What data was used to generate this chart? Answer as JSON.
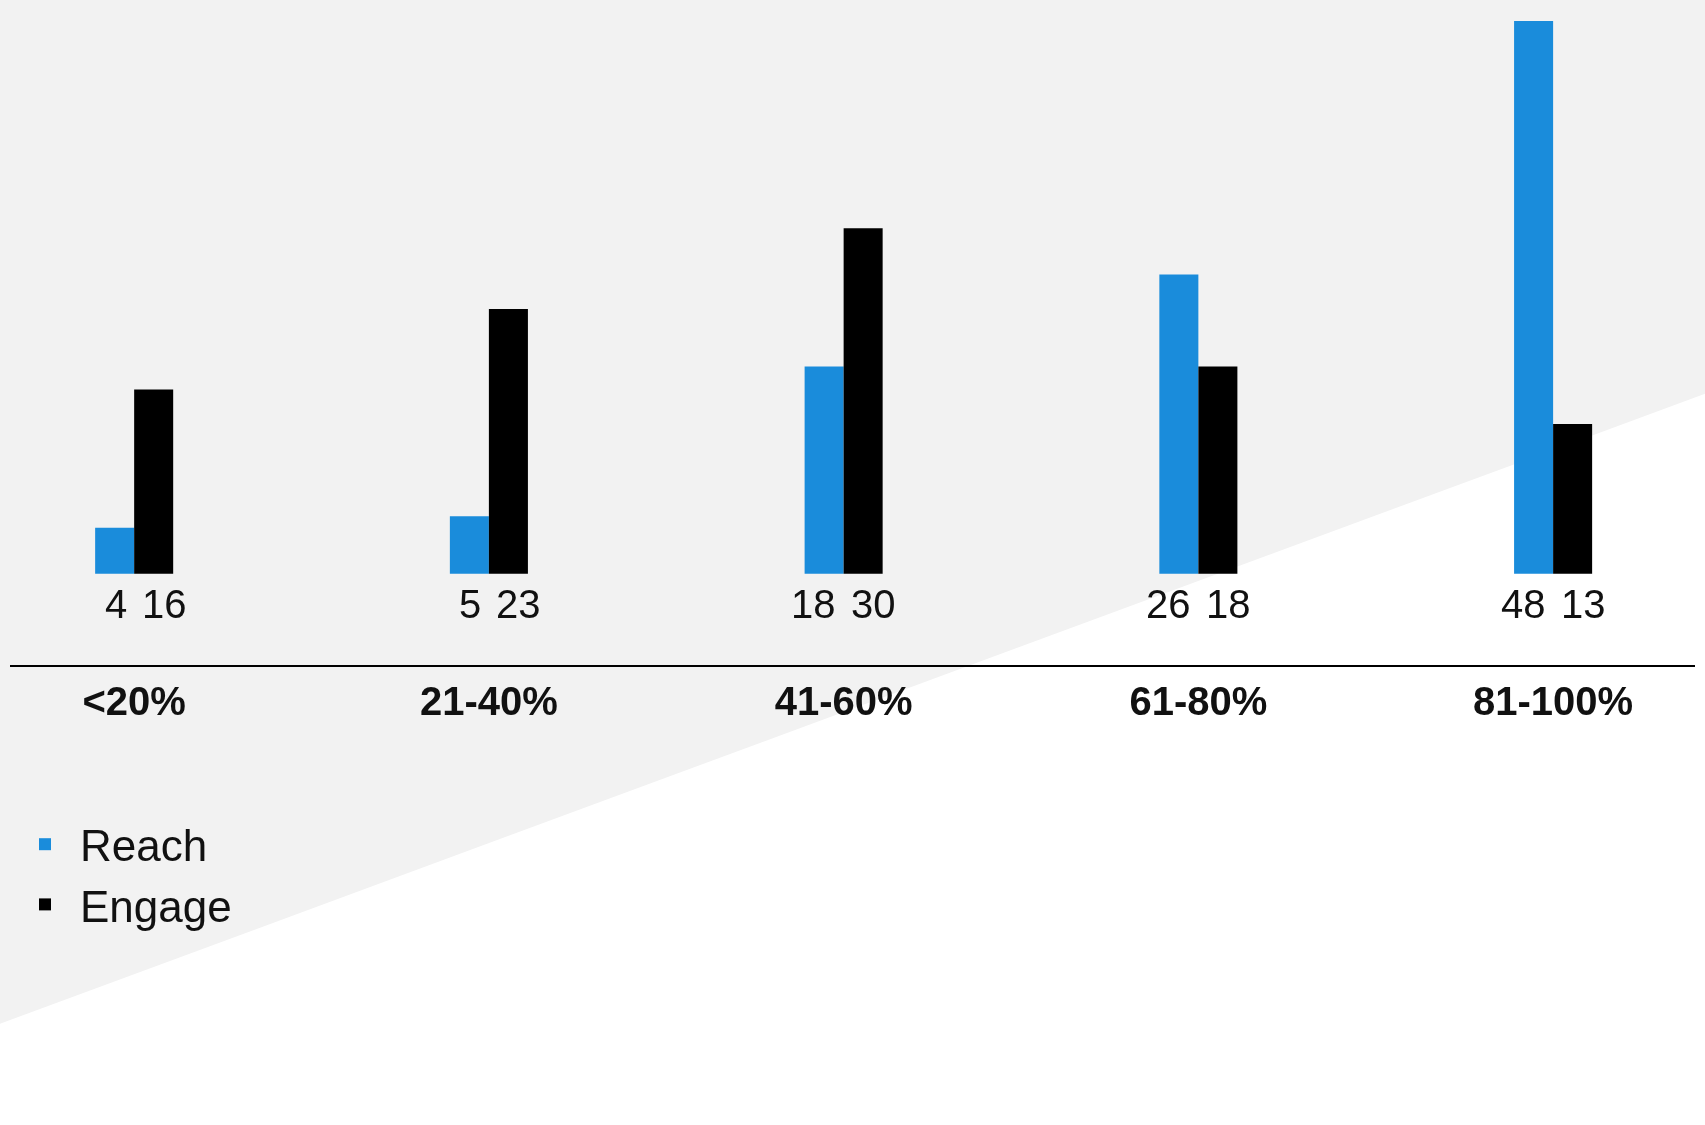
{
  "chart_data": {
    "type": "bar",
    "categories": [
      "<20%",
      "21-40%",
      "41-60%",
      "61-80%",
      "81-100%"
    ],
    "series": [
      {
        "name": "Reach",
        "color": "#1a8cdb",
        "values": [
          4,
          5,
          18,
          26,
          48
        ]
      },
      {
        "name": "Engage",
        "color": "#000000",
        "values": [
          16,
          23,
          30,
          18,
          13
        ]
      }
    ],
    "data_labels": true,
    "grid": false,
    "legend": "bottom left"
  }
}
